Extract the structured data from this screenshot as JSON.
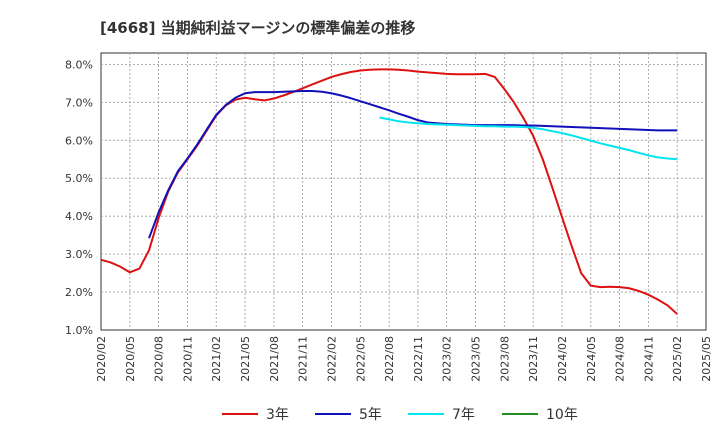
{
  "chart_data": {
    "type": "line",
    "title": "[4668]  当期純利益マージンの標準偏差の推移",
    "xlabel": "",
    "ylabel": "",
    "ylim": [
      1.0,
      8.3
    ],
    "y_ticks": [
      1.0,
      2.0,
      3.0,
      4.0,
      5.0,
      6.0,
      7.0,
      8.0
    ],
    "y_tick_labels": [
      "1.0%",
      "2.0%",
      "3.0%",
      "4.0%",
      "5.0%",
      "6.0%",
      "7.0%",
      "8.0%"
    ],
    "x_range": [
      "2020-02",
      "2025-05"
    ],
    "x_tick_labels": [
      "2020/02",
      "2020/05",
      "2020/08",
      "2020/11",
      "2021/02",
      "2021/05",
      "2021/08",
      "2021/11",
      "2022/02",
      "2022/05",
      "2022/08",
      "2022/11",
      "2023/02",
      "2023/05",
      "2023/08",
      "2023/11",
      "2024/02",
      "2024/05",
      "2024/08",
      "2024/11",
      "2025/02",
      "2025/05"
    ],
    "grid": true,
    "legend_position": "bottom",
    "series": [
      {
        "name": "3年",
        "color": "#dd1111",
        "points": [
          [
            "2020-02",
            2.85
          ],
          [
            "2020-03",
            2.78
          ],
          [
            "2020-04",
            2.67
          ],
          [
            "2020-05",
            2.52
          ],
          [
            "2020-06",
            2.62
          ],
          [
            "2020-07",
            3.1
          ],
          [
            "2020-08",
            3.95
          ],
          [
            "2020-09",
            4.65
          ],
          [
            "2020-10",
            5.15
          ],
          [
            "2020-11",
            5.5
          ],
          [
            "2020-12",
            5.85
          ],
          [
            "2021-01",
            6.25
          ],
          [
            "2021-02",
            6.65
          ],
          [
            "2021-03",
            6.92
          ],
          [
            "2021-04",
            7.07
          ],
          [
            "2021-05",
            7.12
          ],
          [
            "2021-06",
            7.08
          ],
          [
            "2021-07",
            7.05
          ],
          [
            "2021-08",
            7.1
          ],
          [
            "2021-09",
            7.18
          ],
          [
            "2021-10",
            7.27
          ],
          [
            "2021-11",
            7.37
          ],
          [
            "2021-12",
            7.47
          ],
          [
            "2022-01",
            7.57
          ],
          [
            "2022-02",
            7.67
          ],
          [
            "2022-03",
            7.74
          ],
          [
            "2022-04",
            7.8
          ],
          [
            "2022-05",
            7.84
          ],
          [
            "2022-06",
            7.86
          ],
          [
            "2022-07",
            7.87
          ],
          [
            "2022-08",
            7.87
          ],
          [
            "2022-09",
            7.86
          ],
          [
            "2022-10",
            7.84
          ],
          [
            "2022-11",
            7.81
          ],
          [
            "2022-12",
            7.79
          ],
          [
            "2023-01",
            7.77
          ],
          [
            "2023-02",
            7.75
          ],
          [
            "2023-03",
            7.74
          ],
          [
            "2023-04",
            7.74
          ],
          [
            "2023-05",
            7.74
          ],
          [
            "2023-06",
            7.75
          ],
          [
            "2023-07",
            7.67
          ],
          [
            "2023-08",
            7.35
          ],
          [
            "2023-09",
            7.0
          ],
          [
            "2023-10",
            6.58
          ],
          [
            "2023-11",
            6.12
          ],
          [
            "2023-12",
            5.5
          ],
          [
            "2024-01",
            4.75
          ],
          [
            "2024-02",
            3.98
          ],
          [
            "2024-03",
            3.22
          ],
          [
            "2024-04",
            2.5
          ],
          [
            "2024-05",
            2.17
          ],
          [
            "2024-06",
            2.13
          ],
          [
            "2024-07",
            2.14
          ],
          [
            "2024-08",
            2.13
          ],
          [
            "2024-09",
            2.1
          ],
          [
            "2024-10",
            2.03
          ],
          [
            "2024-11",
            1.93
          ],
          [
            "2024-12",
            1.8
          ],
          [
            "2025-01",
            1.65
          ],
          [
            "2025-02",
            1.42
          ]
        ]
      },
      {
        "name": "5年",
        "color": "#1111bb",
        "points": [
          [
            "2020-07",
            3.42
          ],
          [
            "2020-08",
            4.1
          ],
          [
            "2020-09",
            4.68
          ],
          [
            "2020-10",
            5.18
          ],
          [
            "2020-11",
            5.52
          ],
          [
            "2020-12",
            5.88
          ],
          [
            "2021-01",
            6.28
          ],
          [
            "2021-02",
            6.67
          ],
          [
            "2021-03",
            6.93
          ],
          [
            "2021-04",
            7.12
          ],
          [
            "2021-05",
            7.24
          ],
          [
            "2021-06",
            7.27
          ],
          [
            "2021-07",
            7.27
          ],
          [
            "2021-08",
            7.27
          ],
          [
            "2021-09",
            7.28
          ],
          [
            "2021-10",
            7.29
          ],
          [
            "2021-11",
            7.3
          ],
          [
            "2021-12",
            7.3
          ],
          [
            "2022-01",
            7.28
          ],
          [
            "2022-02",
            7.24
          ],
          [
            "2022-03",
            7.18
          ],
          [
            "2022-04",
            7.11
          ],
          [
            "2022-05",
            7.03
          ],
          [
            "2022-06",
            6.95
          ],
          [
            "2022-07",
            6.87
          ],
          [
            "2022-08",
            6.79
          ],
          [
            "2022-09",
            6.7
          ],
          [
            "2022-10",
            6.62
          ],
          [
            "2022-11",
            6.53
          ],
          [
            "2022-12",
            6.47
          ],
          [
            "2023-01",
            6.45
          ],
          [
            "2023-02",
            6.43
          ],
          [
            "2023-03",
            6.42
          ],
          [
            "2023-04",
            6.41
          ],
          [
            "2023-05",
            6.4
          ],
          [
            "2023-06",
            6.4
          ],
          [
            "2023-07",
            6.4
          ],
          [
            "2023-08",
            6.4
          ],
          [
            "2023-09",
            6.4
          ],
          [
            "2023-10",
            6.39
          ],
          [
            "2023-11",
            6.39
          ],
          [
            "2023-12",
            6.38
          ],
          [
            "2024-01",
            6.37
          ],
          [
            "2024-02",
            6.36
          ],
          [
            "2024-03",
            6.35
          ],
          [
            "2024-04",
            6.34
          ],
          [
            "2024-05",
            6.33
          ],
          [
            "2024-06",
            6.32
          ],
          [
            "2024-07",
            6.31
          ],
          [
            "2024-08",
            6.3
          ],
          [
            "2024-09",
            6.29
          ],
          [
            "2024-10",
            6.28
          ],
          [
            "2024-11",
            6.27
          ],
          [
            "2024-12",
            6.26
          ],
          [
            "2025-01",
            6.26
          ],
          [
            "2025-02",
            6.26
          ]
        ]
      },
      {
        "name": "7年",
        "color": "#00e5ee",
        "points": [
          [
            "2022-07",
            6.6
          ],
          [
            "2022-08",
            6.55
          ],
          [
            "2022-09",
            6.5
          ],
          [
            "2022-10",
            6.47
          ],
          [
            "2022-11",
            6.45
          ],
          [
            "2022-12",
            6.43
          ],
          [
            "2023-01",
            6.42
          ],
          [
            "2023-02",
            6.41
          ],
          [
            "2023-03",
            6.4
          ],
          [
            "2023-04",
            6.39
          ],
          [
            "2023-05",
            6.38
          ],
          [
            "2023-06",
            6.37
          ],
          [
            "2023-07",
            6.37
          ],
          [
            "2023-08",
            6.36
          ],
          [
            "2023-09",
            6.36
          ],
          [
            "2023-10",
            6.35
          ],
          [
            "2023-11",
            6.33
          ],
          [
            "2023-12",
            6.29
          ],
          [
            "2024-01",
            6.24
          ],
          [
            "2024-02",
            6.19
          ],
          [
            "2024-03",
            6.13
          ],
          [
            "2024-04",
            6.06
          ],
          [
            "2024-05",
            5.99
          ],
          [
            "2024-06",
            5.92
          ],
          [
            "2024-07",
            5.86
          ],
          [
            "2024-08",
            5.8
          ],
          [
            "2024-09",
            5.74
          ],
          [
            "2024-10",
            5.67
          ],
          [
            "2024-11",
            5.6
          ],
          [
            "2024-12",
            5.55
          ],
          [
            "2025-01",
            5.52
          ],
          [
            "2025-02",
            5.5
          ]
        ]
      },
      {
        "name": "10年",
        "color": "#228b22",
        "points": []
      }
    ]
  }
}
